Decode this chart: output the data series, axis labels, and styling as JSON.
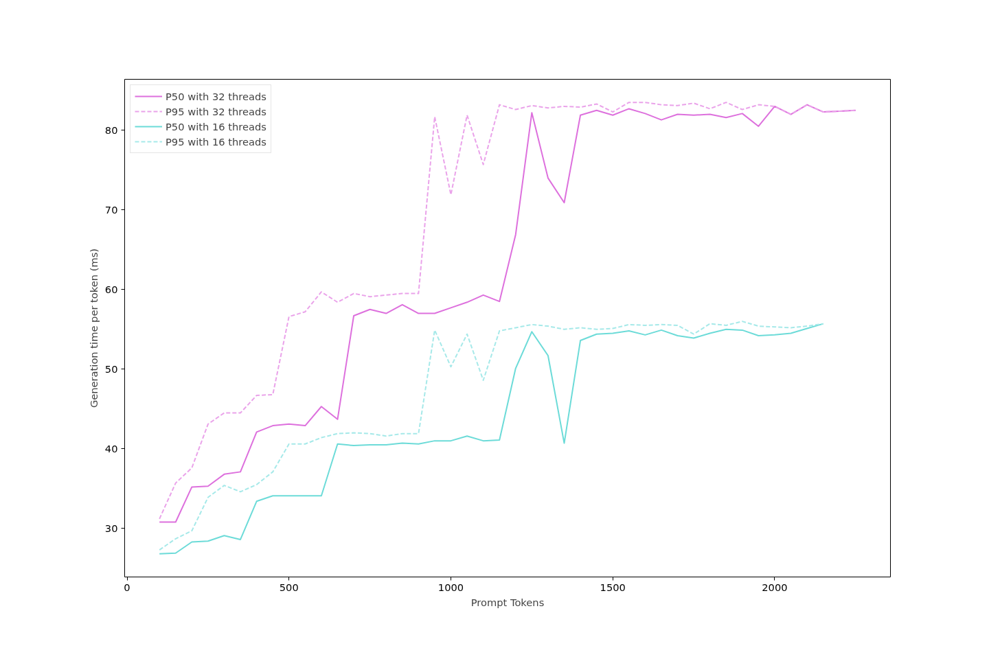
{
  "chart_data": {
    "type": "line",
    "xlabel": "Prompt Tokens",
    "ylabel": "Generation time per token (ms)",
    "xlim": [
      -7.5,
      2357.5
    ],
    "ylim": [
      23.9,
      86.4
    ],
    "xticks": [
      0,
      500,
      1000,
      1500,
      2000
    ],
    "yticks": [
      30,
      40,
      50,
      60,
      70,
      80
    ],
    "grid": false,
    "legend": "top left",
    "series": [
      {
        "name": "P50 with 32 threads",
        "color": "#dd70dd",
        "line_style": "solid",
        "x": [
          100,
          150,
          200,
          250,
          300,
          350,
          400,
          450,
          500,
          550,
          600,
          650,
          700,
          750,
          800,
          850,
          900,
          950,
          1000,
          1050,
          1100,
          1150,
          1200,
          1250,
          1300,
          1350,
          1400,
          1450,
          1500,
          1550,
          1600,
          1650,
          1700,
          1750,
          1800,
          1850,
          1900,
          1950,
          2000,
          2050,
          2100,
          2150,
          2200,
          2250
        ],
        "values": [
          30.8,
          30.8,
          35.2,
          35.3,
          36.8,
          37.1,
          42.1,
          42.9,
          43.1,
          42.9,
          45.3,
          43.7,
          56.7,
          57.5,
          57.0,
          58.1,
          57.0,
          57.0,
          57.7,
          58.4,
          59.3,
          58.5,
          66.9,
          82.2,
          74.0,
          70.9,
          81.9,
          82.5,
          81.9,
          82.7,
          82.1,
          81.3,
          82.0,
          81.9,
          82.0,
          81.6,
          82.1,
          80.5,
          83.0,
          82.0,
          83.2,
          82.3,
          82.4,
          82.5
        ]
      },
      {
        "name": "P95 with 32 threads",
        "color": "#eaa3ea",
        "line_style": "dashed",
        "x": [
          100,
          150,
          200,
          250,
          300,
          350,
          400,
          450,
          500,
          550,
          600,
          650,
          700,
          750,
          800,
          850,
          900,
          950,
          1000,
          1050,
          1100,
          1150,
          1200,
          1250,
          1300,
          1350,
          1400,
          1450,
          1500,
          1550,
          1600,
          1650,
          1700,
          1750,
          1800,
          1850,
          1900,
          1950,
          2000,
          2050,
          2100,
          2150,
          2200,
          2250
        ],
        "values": [
          31.2,
          35.7,
          37.6,
          43.1,
          44.5,
          44.5,
          46.7,
          46.8,
          56.6,
          57.2,
          59.7,
          58.4,
          59.5,
          59.1,
          59.3,
          59.5,
          59.5,
          81.7,
          71.9,
          81.9,
          75.7,
          83.2,
          82.6,
          83.1,
          82.8,
          83.0,
          82.9,
          83.3,
          82.3,
          83.5,
          83.5,
          83.2,
          83.1,
          83.4,
          82.7,
          83.5,
          82.6,
          83.2,
          83.0,
          82.0,
          83.2,
          82.3,
          82.4,
          82.5
        ]
      },
      {
        "name": "P50 with 16 threads",
        "color": "#6cdbd8",
        "line_style": "solid",
        "x": [
          100,
          150,
          200,
          250,
          300,
          350,
          400,
          450,
          500,
          550,
          600,
          650,
          700,
          750,
          800,
          850,
          900,
          950,
          1000,
          1050,
          1100,
          1150,
          1200,
          1250,
          1300,
          1350,
          1400,
          1450,
          1500,
          1550,
          1600,
          1650,
          1700,
          1750,
          1800,
          1850,
          1900,
          1950,
          2000,
          2050,
          2100,
          2150
        ],
        "values": [
          26.8,
          26.9,
          28.3,
          28.4,
          29.1,
          28.6,
          33.4,
          34.1,
          34.1,
          34.1,
          34.1,
          40.6,
          40.4,
          40.5,
          40.5,
          40.7,
          40.6,
          41.0,
          41.0,
          41.6,
          41.0,
          41.1,
          50.1,
          54.7,
          51.7,
          40.7,
          53.6,
          54.4,
          54.5,
          54.8,
          54.3,
          54.9,
          54.2,
          53.9,
          54.5,
          55.0,
          54.9,
          54.2,
          54.3,
          54.5,
          55.1,
          55.7
        ]
      },
      {
        "name": "P95 with 16 threads",
        "color": "#a6e9e9",
        "line_style": "dashed",
        "x": [
          100,
          150,
          200,
          250,
          300,
          350,
          400,
          450,
          500,
          550,
          600,
          650,
          700,
          750,
          800,
          850,
          900,
          950,
          1000,
          1050,
          1100,
          1150,
          1200,
          1250,
          1300,
          1350,
          1400,
          1450,
          1500,
          1550,
          1600,
          1650,
          1700,
          1750,
          1800,
          1850,
          1900,
          1950,
          2000,
          2050,
          2100,
          2150
        ],
        "values": [
          27.3,
          28.7,
          29.7,
          33.9,
          35.4,
          34.6,
          35.5,
          37.1,
          40.6,
          40.6,
          41.4,
          41.9,
          42.0,
          41.9,
          41.6,
          41.9,
          41.9,
          54.9,
          50.3,
          54.4,
          48.6,
          54.8,
          55.2,
          55.6,
          55.4,
          55.0,
          55.2,
          55.0,
          55.1,
          55.6,
          55.5,
          55.6,
          55.5,
          54.4,
          55.7,
          55.5,
          56.0,
          55.4,
          55.3,
          55.2,
          55.4,
          55.7
        ]
      }
    ]
  }
}
